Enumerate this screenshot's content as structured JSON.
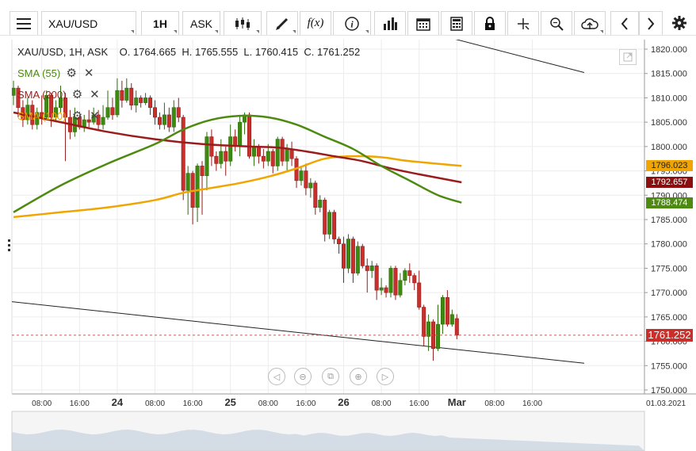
{
  "toolbar": {
    "symbol": "XAU/USD",
    "interval": "1H",
    "price_type": "ASK",
    "function_label": "f(x)",
    "icons": [
      "menu-icon",
      "candlestick-icon",
      "pencil-icon",
      "function-icon",
      "info-icon",
      "bar-chart-icon",
      "calendar-icon",
      "calculator-icon",
      "lock-icon",
      "crosshair-icon",
      "zoom-icon",
      "cloud-upload-icon",
      "chevron-left-icon",
      "chevron-right-icon",
      "gear-icon"
    ]
  },
  "info": {
    "text": "XAU/USD, 1H, ASK    O. 1764.665  H. 1765.555  L. 1760.415  C. 1761.252"
  },
  "legend": [
    {
      "label": "SMA (55)",
      "color": "#4d8a10"
    },
    {
      "label": "SMA (200)",
      "color": "#9b1c1c"
    },
    {
      "label": "SMA (100)",
      "color": "#f0a500"
    }
  ],
  "price_tags": [
    {
      "value": "1796.023",
      "color": "#f0a500",
      "price": 1796.023,
      "text_color": "#222"
    },
    {
      "value": "1792.657",
      "color": "#8b0f0f",
      "price": 1792.657,
      "text_color": "#fff"
    },
    {
      "value": "1788.474",
      "color": "#4d8a10",
      "price": 1788.474,
      "text_color": "#fff"
    },
    {
      "value": "1761.252",
      "color": "#c9302c",
      "price": 1761.252,
      "text_color": "#fff"
    }
  ],
  "chart_data": {
    "type": "candlestick",
    "y_axis": {
      "min": 1750,
      "max": 1820,
      "step": 5,
      "labels": [
        "1820.000",
        "1815.000",
        "1810.000",
        "1805.000",
        "1800.000",
        "1795.000",
        "1790.000",
        "1785.000",
        "1780.000",
        "1775.000",
        "1770.000",
        "1765.000",
        "1760.000",
        "1755.000",
        "1750.000"
      ]
    },
    "x_labels": [
      {
        "text": "08:00",
        "i": 6,
        "bold": false
      },
      {
        "text": "16:00",
        "i": 14,
        "bold": false
      },
      {
        "text": "24",
        "i": 22,
        "bold": true
      },
      {
        "text": "08:00",
        "i": 30,
        "bold": false
      },
      {
        "text": "16:00",
        "i": 38,
        "bold": false
      },
      {
        "text": "25",
        "i": 46,
        "bold": true
      },
      {
        "text": "08:00",
        "i": 54,
        "bold": false
      },
      {
        "text": "16:00",
        "i": 62,
        "bold": false
      },
      {
        "text": "26",
        "i": 70,
        "bold": true
      },
      {
        "text": "08:00",
        "i": 78,
        "bold": false
      },
      {
        "text": "16:00",
        "i": 86,
        "bold": false
      },
      {
        "text": "Mar",
        "i": 94,
        "bold": true
      },
      {
        "text": "08:00",
        "i": 102,
        "bold": false
      },
      {
        "text": "16:00",
        "i": 110,
        "bold": false
      },
      {
        "text": "01.03.2021",
        "i": 117,
        "bold": false
      }
    ],
    "candles": [
      [
        1810.5,
        1812.0,
        1813.5,
        1808.5
      ],
      [
        1812.0,
        1808.0,
        1812.5,
        1806.0
      ],
      [
        1808.0,
        1805.5,
        1809.5,
        1804.0
      ],
      [
        1805.5,
        1808.5,
        1810.0,
        1804.5
      ],
      [
        1808.5,
        1804.5,
        1809.5,
        1803.5
      ],
      [
        1804.5,
        1807.0,
        1808.0,
        1803.5
      ],
      [
        1807.0,
        1806.0,
        1810.5,
        1804.5
      ],
      [
        1806.0,
        1810.5,
        1811.5,
        1805.5
      ],
      [
        1810.5,
        1806.0,
        1811.0,
        1804.0
      ],
      [
        1806.0,
        1808.0,
        1809.5,
        1805.0
      ],
      [
        1808.0,
        1810.0,
        1812.5,
        1807.0
      ],
      [
        1810.0,
        1806.0,
        1811.0,
        1797.0
      ],
      [
        1806.0,
        1803.0,
        1807.5,
        1801.5
      ],
      [
        1803.0,
        1806.0,
        1808.0,
        1802.0
      ],
      [
        1806.0,
        1804.0,
        1806.5,
        1803.5
      ],
      [
        1804.0,
        1805.5,
        1806.5,
        1803.0
      ],
      [
        1805.5,
        1805.0,
        1807.5,
        1804.0
      ],
      [
        1805.0,
        1806.5,
        1808.0,
        1804.5
      ],
      [
        1806.5,
        1804.5,
        1807.5,
        1803.5
      ],
      [
        1804.5,
        1806.0,
        1808.5,
        1803.5
      ],
      [
        1806.0,
        1808.0,
        1811.5,
        1805.5
      ],
      [
        1808.0,
        1806.5,
        1810.0,
        1805.5
      ],
      [
        1806.5,
        1811.5,
        1814.0,
        1806.0
      ],
      [
        1811.5,
        1809.5,
        1813.5,
        1808.0
      ],
      [
        1809.5,
        1812.0,
        1814.0,
        1809.0
      ],
      [
        1812.0,
        1808.5,
        1813.0,
        1807.5
      ],
      [
        1808.5,
        1810.0,
        1811.5,
        1807.0
      ],
      [
        1810.0,
        1809.0,
        1810.5,
        1808.0
      ],
      [
        1809.0,
        1810.0,
        1811.0,
        1808.5
      ],
      [
        1810.0,
        1808.0,
        1810.5,
        1806.5
      ],
      [
        1808.0,
        1806.0,
        1809.5,
        1804.5
      ],
      [
        1806.0,
        1804.5,
        1807.0,
        1803.5
      ],
      [
        1804.5,
        1806.5,
        1809.0,
        1803.5
      ],
      [
        1806.5,
        1804.0,
        1808.0,
        1803.0
      ],
      [
        1804.0,
        1808.0,
        1809.5,
        1803.0
      ],
      [
        1808.0,
        1806.0,
        1810.0,
        1805.0
      ],
      [
        1806.0,
        1791.0,
        1806.5,
        1789.0
      ],
      [
        1791.0,
        1794.5,
        1796.0,
        1786.0
      ],
      [
        1794.5,
        1787.5,
        1795.0,
        1784.0
      ],
      [
        1787.5,
        1796.0,
        1796.5,
        1784.5
      ],
      [
        1796.0,
        1794.0,
        1797.0,
        1786.0
      ],
      [
        1794.0,
        1802.0,
        1803.0,
        1791.0
      ],
      [
        1802.0,
        1798.0,
        1803.5,
        1796.0
      ],
      [
        1798.0,
        1796.5,
        1799.0,
        1795.0
      ],
      [
        1796.5,
        1799.0,
        1801.5,
        1795.5
      ],
      [
        1799.0,
        1797.0,
        1800.0,
        1794.0
      ],
      [
        1797.0,
        1802.0,
        1804.5,
        1796.0
      ],
      [
        1802.0,
        1800.0,
        1803.5,
        1799.0
      ],
      [
        1800.0,
        1805.0,
        1806.5,
        1798.0
      ],
      [
        1805.0,
        1806.5,
        1807.0,
        1802.5
      ],
      [
        1806.5,
        1798.0,
        1807.0,
        1797.5
      ],
      [
        1798.0,
        1800.0,
        1801.5,
        1796.0
      ],
      [
        1800.0,
        1798.0,
        1800.5,
        1796.5
      ],
      [
        1798.0,
        1797.0,
        1799.5,
        1795.5
      ],
      [
        1797.0,
        1799.0,
        1800.5,
        1796.0
      ],
      [
        1799.0,
        1796.0,
        1799.5,
        1794.5
      ],
      [
        1796.0,
        1801.5,
        1802.0,
        1795.0
      ],
      [
        1801.5,
        1797.0,
        1802.0,
        1796.0
      ],
      [
        1797.0,
        1799.5,
        1800.5,
        1795.0
      ],
      [
        1799.5,
        1797.5,
        1801.0,
        1796.0
      ],
      [
        1797.5,
        1793.0,
        1798.0,
        1791.5
      ],
      [
        1793.0,
        1795.0,
        1796.0,
        1792.0
      ],
      [
        1795.0,
        1791.5,
        1796.5,
        1790.0
      ],
      [
        1791.5,
        1792.5,
        1793.5,
        1789.5
      ],
      [
        1792.5,
        1787.5,
        1793.0,
        1786.0
      ],
      [
        1787.5,
        1789.0,
        1790.0,
        1786.5
      ],
      [
        1789.0,
        1782.0,
        1789.5,
        1780.5
      ],
      [
        1782.0,
        1786.5,
        1787.0,
        1781.0
      ],
      [
        1786.5,
        1781.0,
        1787.0,
        1780.0
      ],
      [
        1781.0,
        1780.0,
        1781.5,
        1778.0
      ],
      [
        1780.0,
        1775.0,
        1781.5,
        1772.0
      ],
      [
        1775.0,
        1781.0,
        1782.0,
        1774.0
      ],
      [
        1781.0,
        1774.0,
        1781.5,
        1772.0
      ],
      [
        1774.0,
        1779.5,
        1780.5,
        1773.5
      ],
      [
        1779.5,
        1775.5,
        1780.0,
        1775.0
      ],
      [
        1775.5,
        1774.5,
        1777.0,
        1770.0
      ],
      [
        1774.5,
        1775.5,
        1776.5,
        1773.0
      ],
      [
        1775.5,
        1770.5,
        1776.0,
        1768.5
      ],
      [
        1770.5,
        1771.0,
        1773.0,
        1769.5
      ],
      [
        1771.0,
        1770.0,
        1771.5,
        1769.0
      ],
      [
        1770.0,
        1775.0,
        1775.5,
        1769.0
      ],
      [
        1775.0,
        1769.5,
        1775.5,
        1768.5
      ],
      [
        1769.5,
        1772.5,
        1774.0,
        1769.0
      ],
      [
        1772.5,
        1774.5,
        1775.0,
        1771.5
      ],
      [
        1774.5,
        1773.5,
        1776.0,
        1772.0
      ],
      [
        1773.5,
        1772.0,
        1774.0,
        1770.5
      ],
      [
        1772.0,
        1767.0,
        1774.5,
        1766.5
      ],
      [
        1767.0,
        1761.0,
        1767.5,
        1759.0
      ],
      [
        1761.0,
        1764.0,
        1765.5,
        1758.0
      ],
      [
        1764.0,
        1758.5,
        1764.5,
        1756.0
      ],
      [
        1758.5,
        1763.5,
        1767.5,
        1758.0
      ],
      [
        1763.5,
        1769.0,
        1769.5,
        1761.5
      ],
      [
        1769.0,
        1763.5,
        1770.5,
        1763.0
      ],
      [
        1763.5,
        1765.5,
        1766.5,
        1763.0
      ],
      [
        1764.665,
        1761.252,
        1765.555,
        1760.415
      ]
    ],
    "sma55": [
      [
        0,
        1786.5
      ],
      [
        10,
        1792.0
      ],
      [
        20,
        1796.5
      ],
      [
        30,
        1800.5
      ],
      [
        36,
        1803.5
      ],
      [
        42,
        1805.5
      ],
      [
        48,
        1806.3
      ],
      [
        54,
        1806.0
      ],
      [
        60,
        1804.5
      ],
      [
        66,
        1802.0
      ],
      [
        72,
        1799.5
      ],
      [
        78,
        1796.0
      ],
      [
        84,
        1793.0
      ],
      [
        90,
        1790.0
      ],
      [
        95,
        1788.474
      ]
    ],
    "sma200": [
      [
        0,
        1807.0
      ],
      [
        10,
        1805.0
      ],
      [
        20,
        1803.0
      ],
      [
        30,
        1801.5
      ],
      [
        40,
        1800.5
      ],
      [
        50,
        1800.0
      ],
      [
        56,
        1799.8
      ],
      [
        62,
        1799.0
      ],
      [
        68,
        1798.0
      ],
      [
        74,
        1797.0
      ],
      [
        80,
        1795.5
      ],
      [
        86,
        1794.3
      ],
      [
        95,
        1792.657
      ]
    ],
    "sma100": [
      [
        0,
        1785.5
      ],
      [
        10,
        1786.5
      ],
      [
        20,
        1787.5
      ],
      [
        30,
        1789.0
      ],
      [
        36,
        1790.5
      ],
      [
        42,
        1791.5
      ],
      [
        48,
        1792.5
      ],
      [
        54,
        1793.8
      ],
      [
        60,
        1795.5
      ],
      [
        66,
        1797.5
      ],
      [
        72,
        1798.0
      ],
      [
        78,
        1797.8
      ],
      [
        84,
        1797.0
      ],
      [
        95,
        1796.023
      ]
    ],
    "current_price": 1761.252,
    "trendlines": [
      {
        "from": [
          -2,
          1768.3
        ],
        "to": [
          121,
          1755.5
        ],
        "color": "#222"
      },
      {
        "from": [
          30,
          1838.0
        ],
        "to": [
          121,
          1815.2
        ],
        "color": "#222"
      }
    ]
  }
}
